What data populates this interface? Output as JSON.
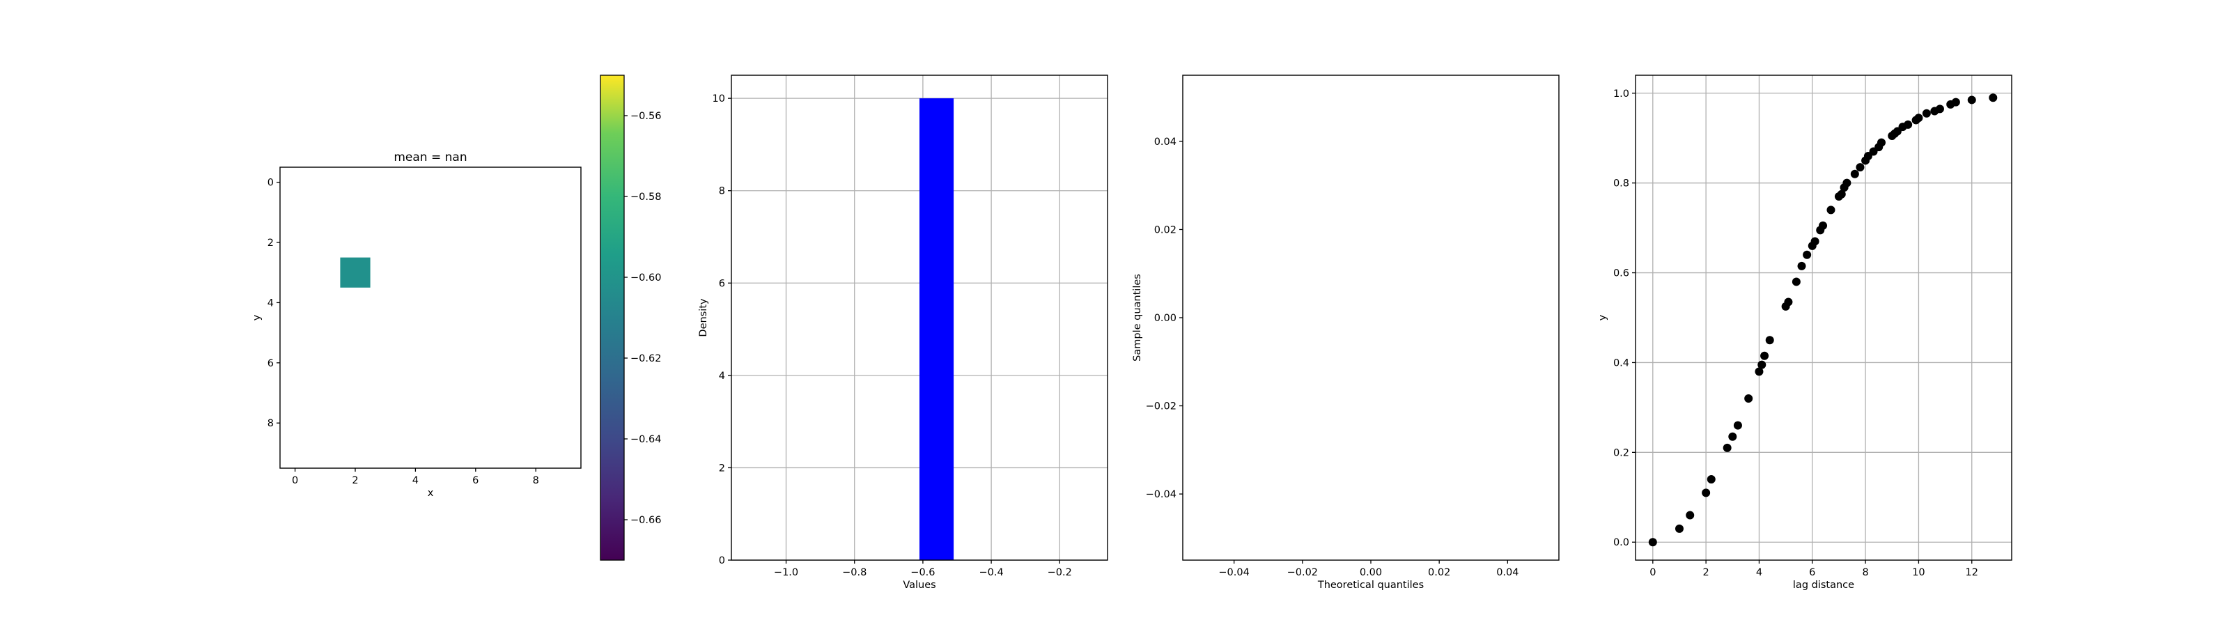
{
  "chart_data": [
    {
      "type": "heatmap",
      "title": "mean = nan",
      "xlabel": "x",
      "ylabel": "y",
      "grid_size": [
        10,
        10
      ],
      "x_ticks": [
        "0",
        "2",
        "4",
        "6",
        "8"
      ],
      "y_ticks": [
        "0",
        "2",
        "4",
        "6",
        "8"
      ],
      "xlim": [
        -0.5,
        9.5
      ],
      "ylim": [
        9.5,
        -0.5
      ],
      "cells": [
        {
          "row": 3,
          "col": 2,
          "value": -0.61
        }
      ],
      "colormap": "viridis",
      "colorbar": {
        "range": [
          -0.67,
          -0.55
        ],
        "ticks": [
          "−0.56",
          "−0.58",
          "−0.60",
          "−0.62",
          "−0.64",
          "−0.66"
        ]
      }
    },
    {
      "type": "bar",
      "xlabel": "Values",
      "ylabel": "Density",
      "xlim": [
        -1.16,
        -0.06
      ],
      "ylim": [
        0,
        10.5
      ],
      "grid": true,
      "bar_color": "#0000ff",
      "bins": [
        {
          "x0": -0.61,
          "x1": -0.51,
          "value": 10
        }
      ],
      "x_ticks": [
        "−1.0",
        "−0.8",
        "−0.6",
        "−0.4",
        "−0.2"
      ],
      "y_ticks": [
        "0",
        "2",
        "4",
        "6",
        "8",
        "10"
      ]
    },
    {
      "type": "scatter",
      "xlabel": "Theoretical quantiles",
      "ylabel": "Sample quantiles",
      "xlim": [
        -0.055,
        0.055
      ],
      "ylim": [
        -0.055,
        0.055
      ],
      "grid": false,
      "points": [],
      "x_ticks": [
        "−0.04",
        "−0.02",
        "0.00",
        "0.02",
        "0.04"
      ],
      "y_ticks": [
        "0.04",
        "0.02",
        "0.00",
        "−0.02",
        "−0.04"
      ]
    },
    {
      "type": "scatter",
      "xlabel": "lag distance",
      "ylabel": "y",
      "xlim": [
        -0.65,
        13.5
      ],
      "ylim": [
        -0.04,
        1.04
      ],
      "grid": true,
      "marker_color": "#000000",
      "x": [
        0,
        1,
        1.4,
        2,
        2.2,
        2.8,
        3,
        3.2,
        3.6,
        4,
        4.1,
        4.2,
        4.4,
        5,
        5.1,
        5.4,
        5.6,
        5.8,
        6,
        6.1,
        6.3,
        6.4,
        6.7,
        7,
        7.1,
        7.2,
        7.3,
        7.6,
        7.8,
        8,
        8.1,
        8.3,
        8.5,
        8.6,
        9,
        9.1,
        9.2,
        9.4,
        9.6,
        9.9,
        10,
        10.3,
        10.6,
        10.8,
        11.2,
        11.4,
        12,
        12.8
      ],
      "y": [
        0,
        0.03,
        0.06,
        0.11,
        0.14,
        0.21,
        0.235,
        0.26,
        0.32,
        0.38,
        0.395,
        0.415,
        0.45,
        0.525,
        0.535,
        0.58,
        0.615,
        0.64,
        0.66,
        0.67,
        0.695,
        0.705,
        0.74,
        0.77,
        0.775,
        0.79,
        0.8,
        0.82,
        0.835,
        0.85,
        0.86,
        0.87,
        0.88,
        0.89,
        0.905,
        0.91,
        0.915,
        0.925,
        0.93,
        0.94,
        0.945,
        0.955,
        0.96,
        0.965,
        0.975,
        0.98,
        0.985,
        0.99
      ],
      "x_ticks": [
        "0",
        "2",
        "4",
        "6",
        "8",
        "10",
        "12"
      ],
      "y_ticks": [
        "0.0",
        "0.2",
        "0.4",
        "0.6",
        "0.8",
        "1.0"
      ]
    }
  ]
}
